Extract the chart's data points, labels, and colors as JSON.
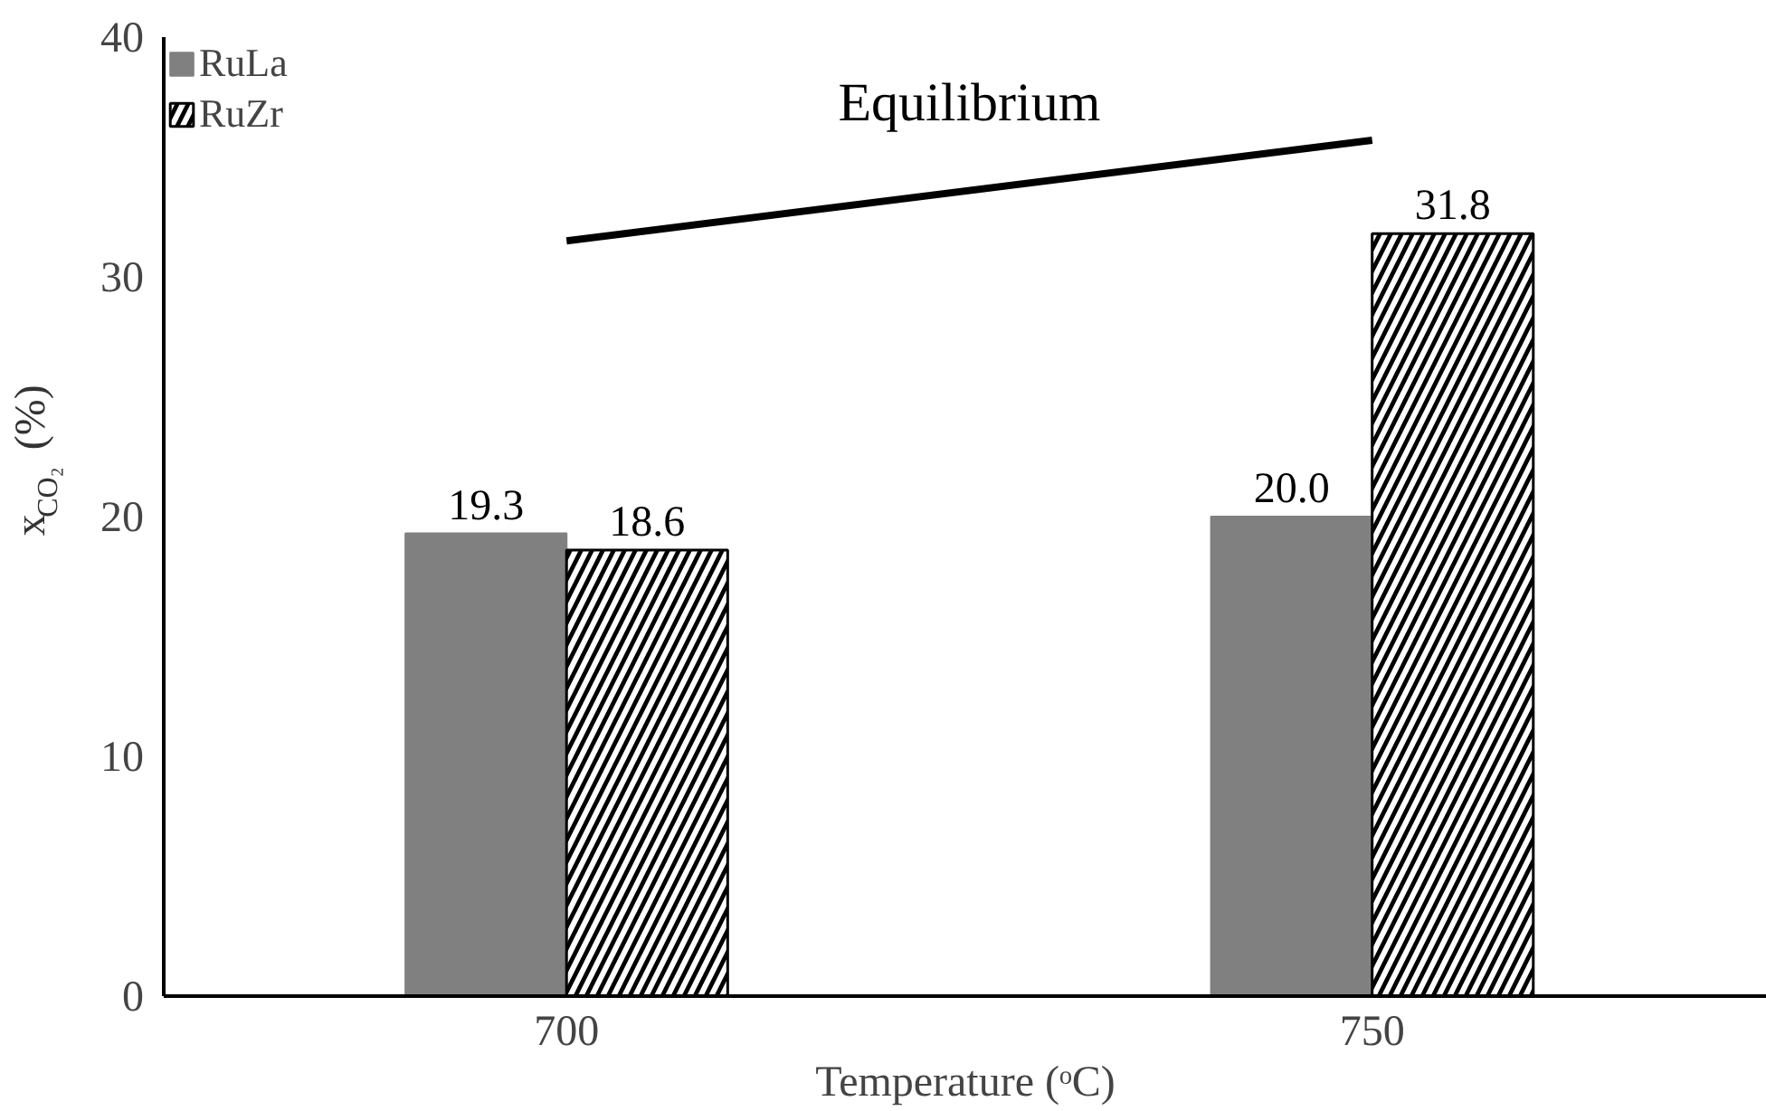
{
  "chart_data": {
    "type": "bar",
    "xlabel": "Temperature (ᵒC)",
    "ylabel": "x$_{CO₂}$ (%)",
    "categories": [
      "700",
      "750"
    ],
    "series": [
      {
        "name": "RuLa",
        "color": "#808080",
        "values": [
          19.3,
          20.0
        ]
      },
      {
        "name": "RuZr",
        "color": "#000000",
        "values": [
          18.6,
          31.8
        ]
      },
      {
        "name": "Equilibrium",
        "type": "line",
        "color": "#000000",
        "x": [
          "700",
          "750"
        ],
        "values": [
          31.5,
          35.7
        ]
      }
    ],
    "value_labels": [
      [
        "19.3",
        "20.0"
      ],
      [
        "18.6",
        "31.8"
      ],
      [
        null,
        null
      ]
    ],
    "ylim": [
      0,
      40
    ],
    "yticks": [
      0,
      10,
      20,
      30,
      40
    ],
    "grid": false,
    "legend": "top left"
  }
}
